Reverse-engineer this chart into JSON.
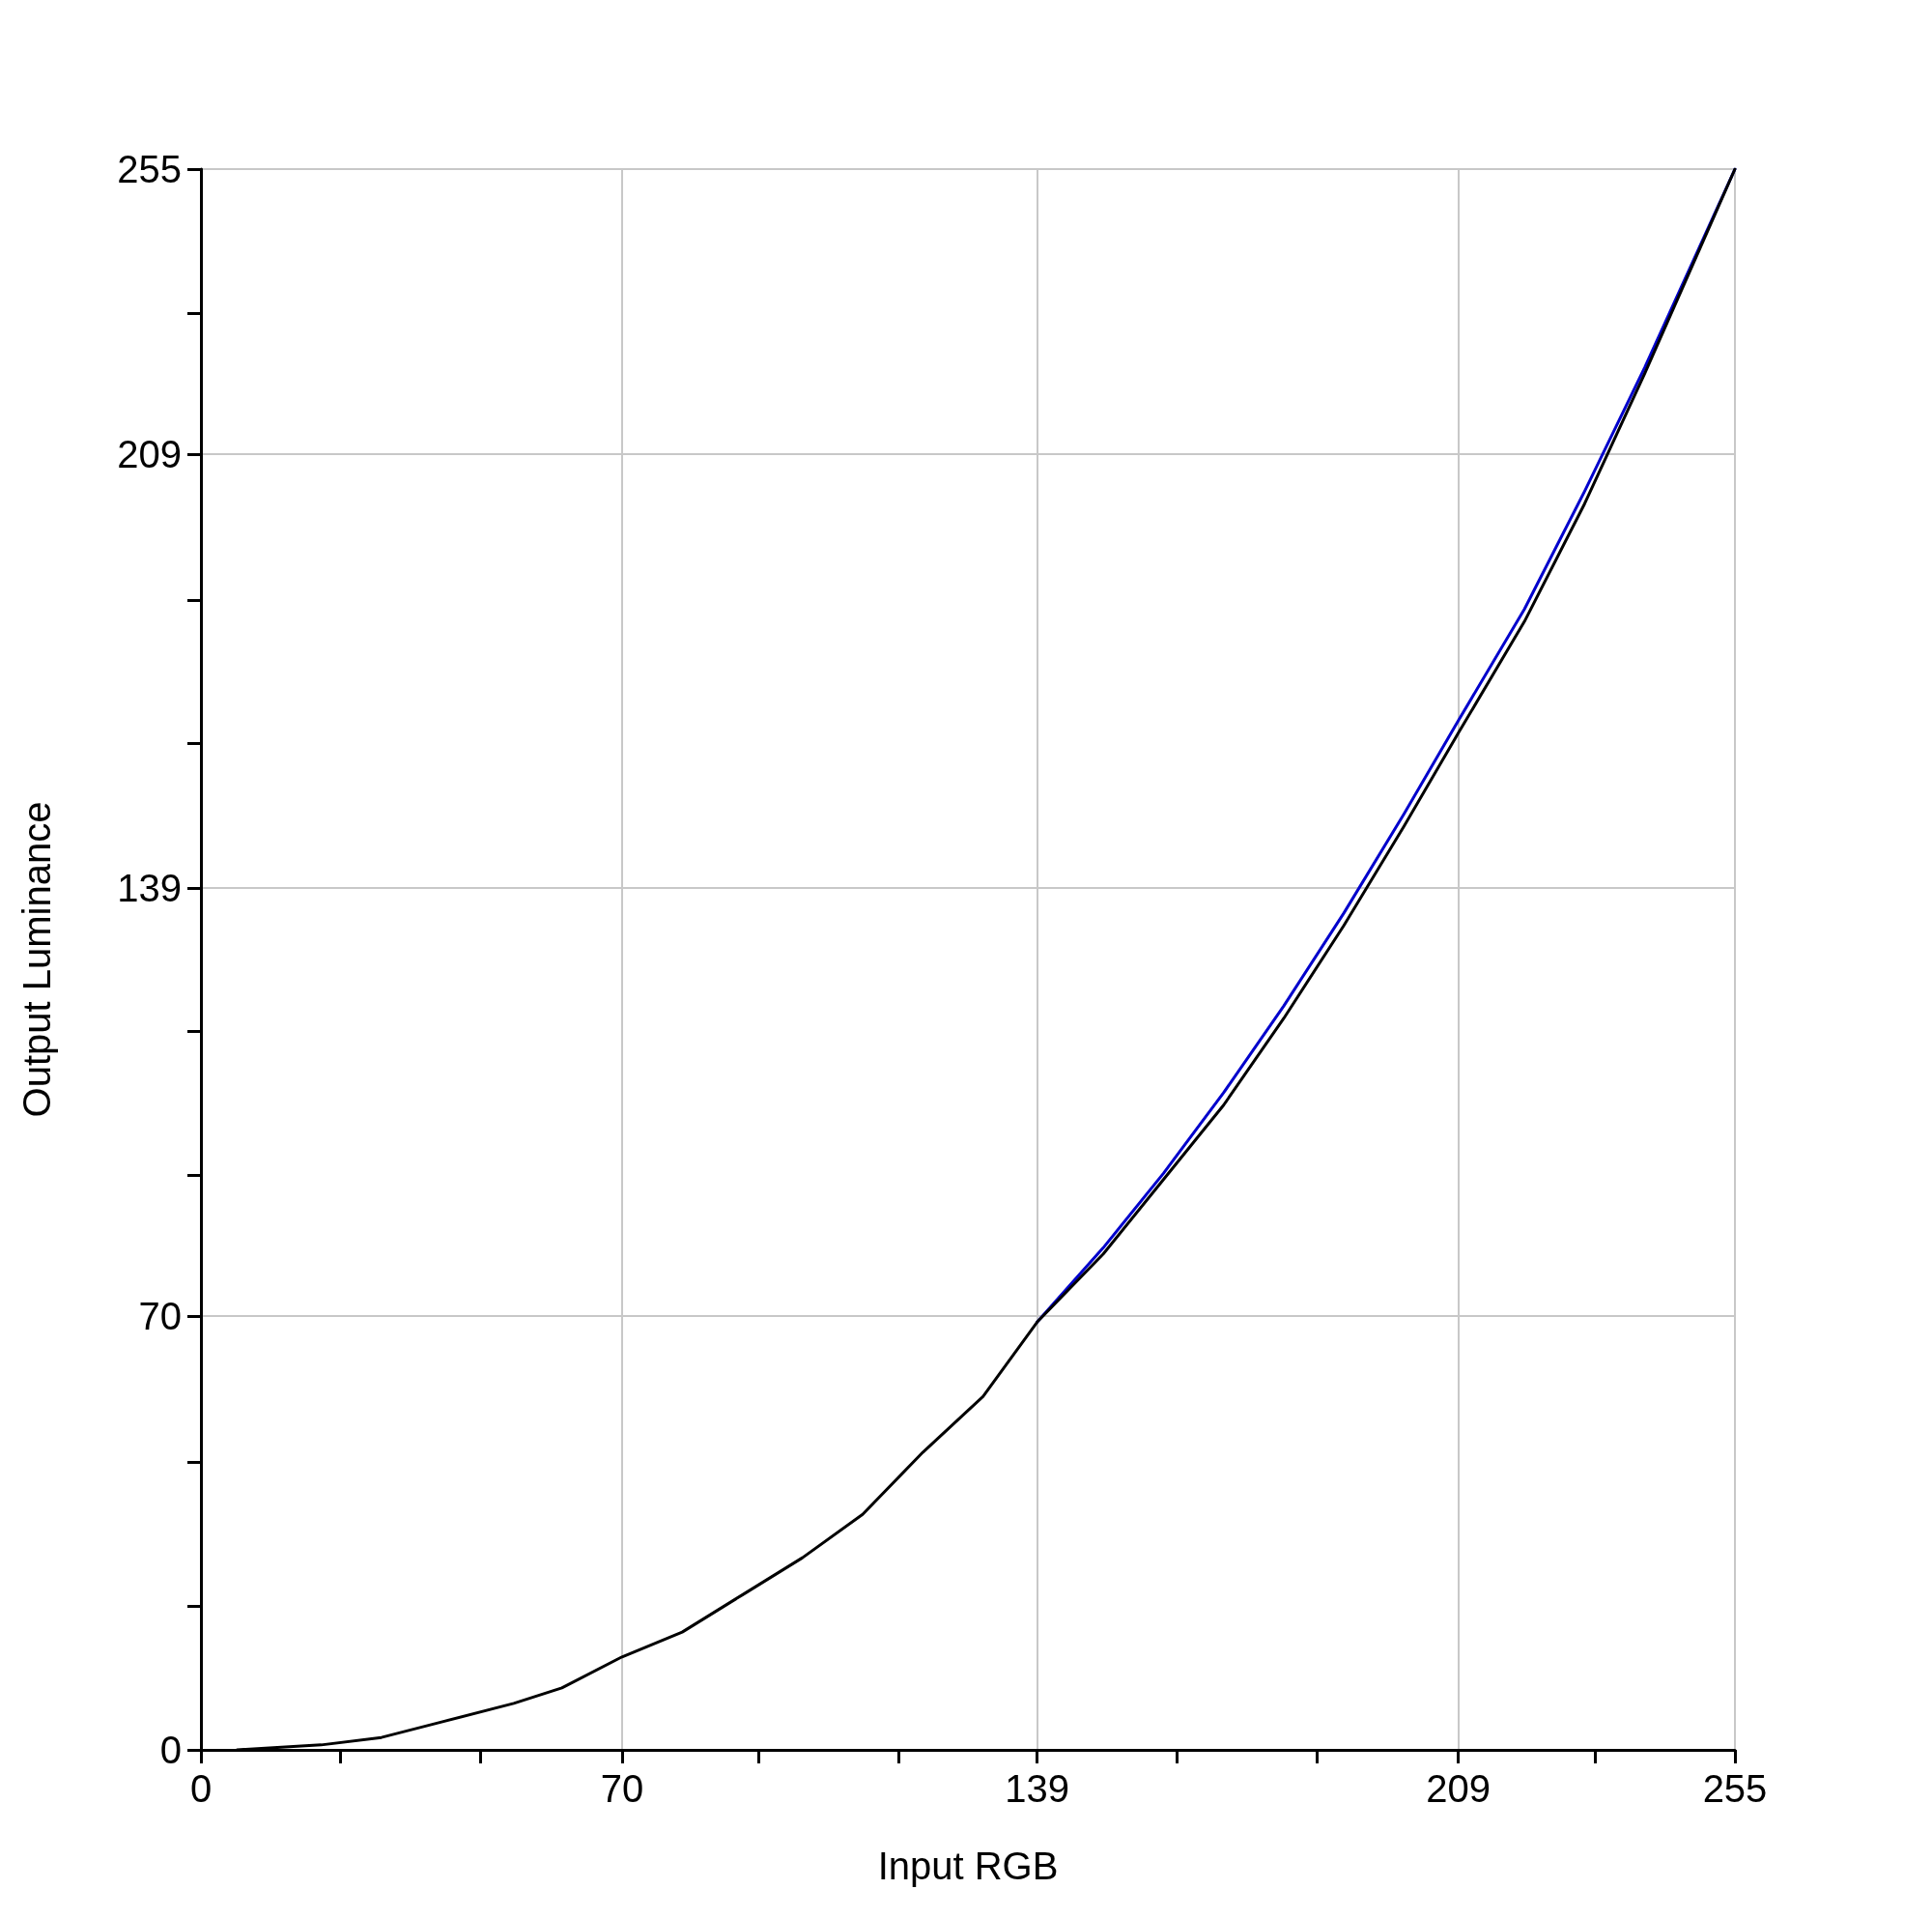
{
  "chart_data": {
    "type": "line",
    "xlabel": "Input RGB",
    "ylabel": "Output Luminance",
    "xlim": [
      0,
      255
    ],
    "ylim": [
      0,
      255
    ],
    "xticks": [
      0,
      {
        "value": 23.2,
        "label": null
      },
      {
        "value": 46.4,
        "label": null
      },
      70,
      {
        "value": 92.7,
        "label": null
      },
      {
        "value": 115.9,
        "label": null
      },
      139,
      {
        "value": 162.3,
        "label": null
      },
      {
        "value": 185.5,
        "label": null
      },
      209,
      {
        "value": 231.8,
        "label": null
      },
      255
    ],
    "yticks": [
      0,
      {
        "value": 23.2,
        "label": null
      },
      {
        "value": 46.4,
        "label": null
      },
      70,
      {
        "value": 92.7,
        "label": null
      },
      {
        "value": 115.9,
        "label": null
      },
      139,
      {
        "value": 162.3,
        "label": null
      },
      {
        "value": 185.5,
        "label": null
      },
      209,
      {
        "value": 231.8,
        "label": null
      },
      255
    ],
    "grid": true,
    "marker": "none",
    "line_style": "solid",
    "series": [
      {
        "color": "#0000cc",
        "x": [
          139,
          150,
          160,
          170,
          180,
          190,
          200,
          209,
          220,
          230,
          240,
          255
        ],
        "values": [
          69,
          81,
          93,
          106,
          120,
          135,
          151,
          166,
          184,
          203,
          223,
          255
        ]
      },
      {
        "color": "#000000",
        "x": [
          6,
          20,
          30,
          40,
          52,
          60,
          70,
          80,
          90,
          100,
          110,
          120,
          130,
          139,
          150,
          160,
          170,
          180,
          190,
          200,
          209,
          220,
          230,
          240,
          255
        ],
        "values": [
          0,
          0.8,
          2,
          4.5,
          7.5,
          10,
          15,
          19,
          25,
          31,
          38,
          48,
          57,
          69,
          80,
          92,
          104,
          118,
          133,
          149,
          164,
          182,
          201,
          222,
          255
        ]
      }
    ]
  }
}
